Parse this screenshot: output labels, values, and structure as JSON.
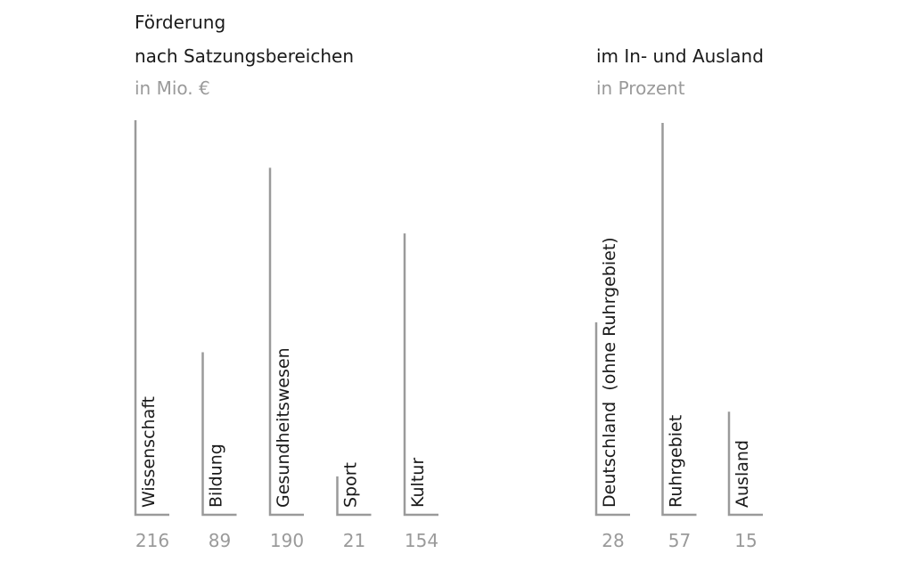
{
  "chart_data": [
    {
      "type": "bar",
      "title": "Förderung",
      "subtitle": "nach Satzungsbereichen",
      "unit": "in Mio. €",
      "categories": [
        "Wissenschaft",
        "Bildung",
        "Gesundheitswesen",
        "Sport",
        "Kultur"
      ],
      "values": [
        216,
        89,
        190,
        21,
        154
      ],
      "value_labels": [
        "216",
        "89",
        "190",
        "21",
        "154"
      ],
      "bar_color": "#9a9a9a"
    },
    {
      "type": "bar",
      "title": "im In- und Ausland",
      "unit": "in Prozent",
      "categories": [
        "Deutschland  (ohne Ruhrgebiet)",
        "Ruhrgebiet",
        "Ausland"
      ],
      "values": [
        28,
        57,
        15
      ],
      "value_labels": [
        "28",
        "57",
        "15"
      ],
      "bar_color": "#9a9a9a"
    }
  ]
}
